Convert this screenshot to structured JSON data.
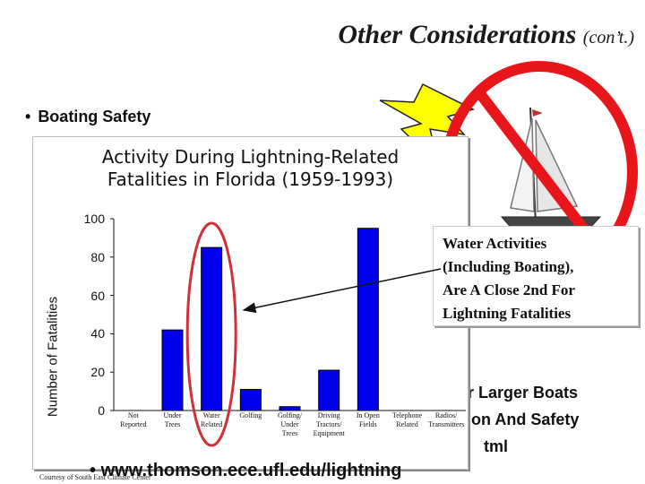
{
  "slide": {
    "title": "Other Considerations",
    "title_suffix": "(con’t.)",
    "bullet": "Boating Safety",
    "partial_lines": [
      "r Larger Boats",
      "on And Safety",
      "tml"
    ],
    "footer_link": "www.thomson.ece.ufl.edu/lightning",
    "credit": "Courtesy of South East Climate Center"
  },
  "callout": {
    "lines": [
      "Water Activities",
      "(Including Boating),",
      "Are A Close 2nd For",
      "Lightning Fatalities"
    ]
  },
  "icons": {
    "lightning": "lightning-bolt-icon",
    "no_sign": "prohibited-sign-icon",
    "boat": "sailboat-icon"
  },
  "colors": {
    "bar": "#0000ee",
    "highlight": "#d0303a",
    "bolt": "#ffff00",
    "no_sign": "#e8161b"
  },
  "chart_data": {
    "type": "bar",
    "title": [
      "Activity During Lightning-Related",
      "Fatalities in Florida (1959-1993)"
    ],
    "ylabel": "Number of Fatalities",
    "xlabel": "",
    "ylim": [
      0,
      100
    ],
    "yticks": [
      0,
      20,
      40,
      60,
      80,
      100
    ],
    "categories": [
      [
        "Not",
        "Reported"
      ],
      [
        "Under",
        "Trees"
      ],
      [
        "Water",
        "Related"
      ],
      [
        "Golfing"
      ],
      [
        "Golfing/",
        "Under",
        "Trees"
      ],
      [
        "Driving",
        "Tractors/",
        "Equipment"
      ],
      [
        "In Open",
        "Fields"
      ],
      [
        "Telephone",
        "Related"
      ],
      [
        "Radios/",
        "Transmitters"
      ]
    ],
    "values": [
      0,
      42,
      85,
      11,
      2,
      21,
      95,
      0,
      0
    ],
    "highlighted_category": "Water Related"
  }
}
